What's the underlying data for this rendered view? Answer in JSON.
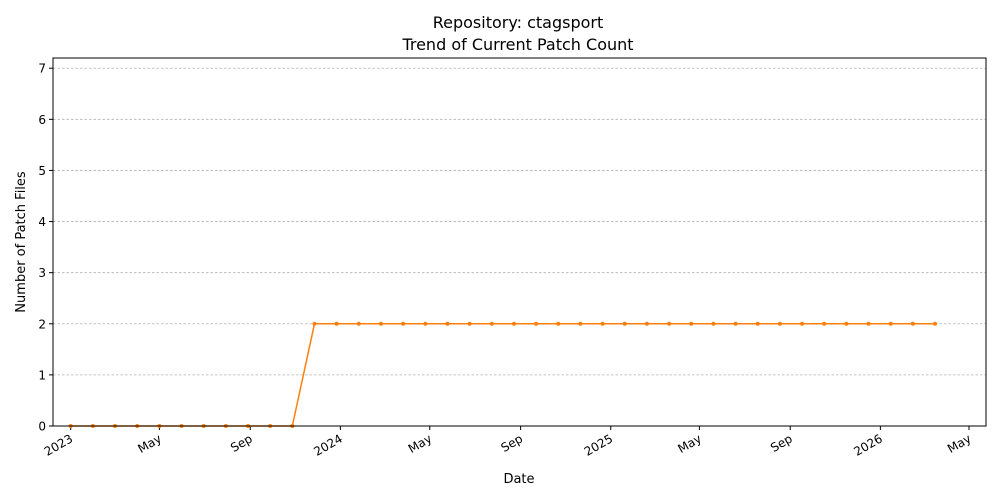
{
  "chart_data": {
    "type": "line",
    "title": "Repository: ctagsport",
    "subtitle": "Trend of Current Patch Count",
    "xlabel": "Date",
    "ylabel": "Number of Patch Files",
    "ylim": [
      0,
      7.2
    ],
    "xlim": [
      "2022-12-08",
      "2026-05-24"
    ],
    "grid": "horizontal dashed",
    "line_color": "#ff7f0e",
    "yticks": [
      "0",
      "1",
      "2",
      "3",
      "4",
      "5",
      "6",
      "7"
    ],
    "xticks": [
      {
        "date": "2023-01-01",
        "label": "2023"
      },
      {
        "date": "2023-05-01",
        "label": "May"
      },
      {
        "date": "2023-09-01",
        "label": "Sep"
      },
      {
        "date": "2024-01-01",
        "label": "2024"
      },
      {
        "date": "2024-05-01",
        "label": "May"
      },
      {
        "date": "2024-09-01",
        "label": "Sep"
      },
      {
        "date": "2025-01-01",
        "label": "2025"
      },
      {
        "date": "2025-05-01",
        "label": "May"
      },
      {
        "date": "2025-09-01",
        "label": "Sep"
      },
      {
        "date": "2026-01-01",
        "label": "2026"
      },
      {
        "date": "2026-05-01",
        "label": "May"
      }
    ],
    "series": [
      {
        "points": [
          {
            "x": "2023-01-01",
            "y": 0
          },
          {
            "x": "2023-01-31",
            "y": 0
          },
          {
            "x": "2023-03-02",
            "y": 0
          },
          {
            "x": "2023-04-01",
            "y": 0
          },
          {
            "x": "2023-05-01",
            "y": 0
          },
          {
            "x": "2023-05-31",
            "y": 0
          },
          {
            "x": "2023-06-30",
            "y": 0
          },
          {
            "x": "2023-07-30",
            "y": 0
          },
          {
            "x": "2023-08-29",
            "y": 0
          },
          {
            "x": "2023-09-28",
            "y": 0
          },
          {
            "x": "2023-10-28",
            "y": 0
          },
          {
            "x": "2023-11-27",
            "y": 2
          },
          {
            "x": "2023-12-27",
            "y": 2
          },
          {
            "x": "2024-01-26",
            "y": 2
          },
          {
            "x": "2024-02-25",
            "y": 2
          },
          {
            "x": "2024-03-26",
            "y": 2
          },
          {
            "x": "2024-04-25",
            "y": 2
          },
          {
            "x": "2024-05-25",
            "y": 2
          },
          {
            "x": "2024-06-24",
            "y": 2
          },
          {
            "x": "2024-07-24",
            "y": 2
          },
          {
            "x": "2024-08-23",
            "y": 2
          },
          {
            "x": "2024-09-22",
            "y": 2
          },
          {
            "x": "2024-10-22",
            "y": 2
          },
          {
            "x": "2024-11-21",
            "y": 2
          },
          {
            "x": "2024-12-21",
            "y": 2
          },
          {
            "x": "2025-01-20",
            "y": 2
          },
          {
            "x": "2025-02-19",
            "y": 2
          },
          {
            "x": "2025-03-21",
            "y": 2
          },
          {
            "x": "2025-04-20",
            "y": 2
          },
          {
            "x": "2025-05-20",
            "y": 2
          },
          {
            "x": "2025-06-19",
            "y": 2
          },
          {
            "x": "2025-07-19",
            "y": 2
          },
          {
            "x": "2025-08-18",
            "y": 2
          },
          {
            "x": "2025-09-17",
            "y": 2
          },
          {
            "x": "2025-10-17",
            "y": 2
          },
          {
            "x": "2025-11-16",
            "y": 2
          },
          {
            "x": "2025-12-16",
            "y": 2
          },
          {
            "x": "2026-01-15",
            "y": 2
          },
          {
            "x": "2026-02-14",
            "y": 2
          },
          {
            "x": "2026-03-16",
            "y": 2
          }
        ]
      }
    ]
  }
}
